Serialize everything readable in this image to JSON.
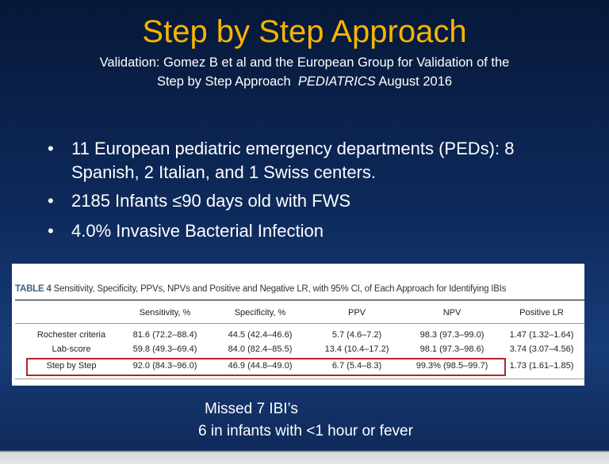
{
  "title": "Step by Step Approach",
  "subtitle": {
    "line1": "Validation:  Gomez B et al and the  European Group for Validation of the",
    "line2_start": "Step by Step Approach",
    "journal": "PEDIATRICS",
    "line2_end": "August 2016"
  },
  "bullets": [
    "11 European pediatric emergency departments (PEDs): 8 Spanish, 2 Italian, and 1 Swiss centers.",
    "2185 Infants ≤90 days old with FWS",
    "4.0% Invasive Bacterial Infection"
  ],
  "table": {
    "label": "TABLE 4",
    "caption": "Sensitivity, Specificity, PPVs, NPVs and Positive and Negative LR, with 95% CI, of Each Approach for Identifying IBIs",
    "headers": [
      "",
      "Sensitivity, %",
      "Specificity, %",
      "PPV",
      "NPV",
      "Positive LR"
    ],
    "rows": [
      [
        "Rochester criteria",
        "81.6 (72.2–88.4)",
        "44.5 (42.4–46.6)",
        "5.7 (4.6–7.2)",
        "98.3 (97.3–99.0)",
        "1.47 (1.32–1.64)"
      ],
      [
        "Lab-score",
        "59.8 (49.3–69.4)",
        "84.0 (82.4–85.5)",
        "13.4 (10.4–17.2)",
        "98.1 (97.3–98.6)",
        "3.74 (3.07–4.56)"
      ],
      [
        "Step by Step",
        "92.0 (84.3–96.0)",
        "46.9 (44.8–49.0)",
        "6.7 (5.4–8.3)",
        "99.3% (98.5–99.7)",
        "1.73 (1.61–1.85)"
      ]
    ]
  },
  "footer": [
    "Missed 7 IBI’s",
    "6 in infants with <1 hour or fever"
  ]
}
